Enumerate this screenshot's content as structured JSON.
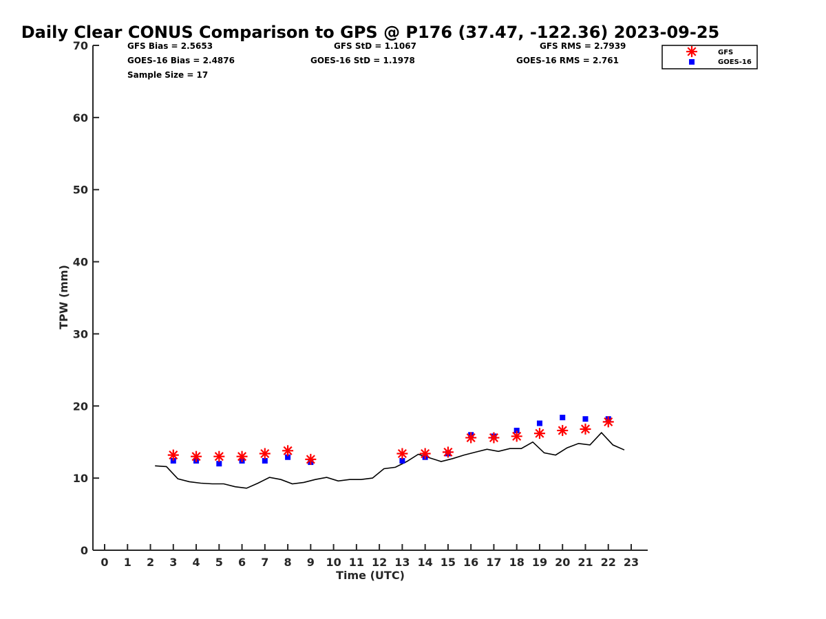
{
  "chart_data": {
    "type": "scatter",
    "title": "Daily Clear CONUS Comparison to GPS @ P176 (37.47, -122.36) 2023-09-25",
    "xlabel": "Time (UTC)",
    "ylabel": "TPW (mm)",
    "xlim": [
      -0.5,
      23.7
    ],
    "ylim": [
      0,
      70
    ],
    "xticks": [
      0,
      1,
      2,
      3,
      4,
      5,
      6,
      7,
      8,
      9,
      10,
      11,
      12,
      13,
      14,
      15,
      16,
      17,
      18,
      19,
      20,
      21,
      22,
      23
    ],
    "yticks": [
      0,
      10,
      20,
      30,
      40,
      50,
      60,
      70
    ],
    "grid": false,
    "legend_position": "top-right",
    "stats": {
      "gfs_bias": "GFS Bias = 2.5653",
      "goes_bias": "GOES-16 Bias = 2.4876",
      "sample_size": "Sample Size = 17",
      "gfs_std": "GFS StD = 1.1067",
      "goes_std": "GOES-16 StD = 1.1978",
      "gfs_rms": "GFS RMS = 2.7939",
      "goes_rms": "GOES-16 RMS = 2.761"
    },
    "series": [
      {
        "name": "GFS",
        "marker": "asterisk",
        "color": "#ff0000",
        "x": [
          3,
          4,
          5,
          6,
          7,
          8,
          9,
          13,
          14,
          15,
          16,
          17,
          18,
          19,
          20,
          21,
          22
        ],
        "y": [
          13.2,
          13.0,
          13.0,
          13.0,
          13.4,
          13.8,
          12.6,
          13.4,
          13.4,
          13.6,
          15.6,
          15.6,
          15.8,
          16.2,
          16.6,
          16.8,
          17.8
        ]
      },
      {
        "name": "GOES-16",
        "marker": "square",
        "color": "#0000ff",
        "x": [
          3,
          4,
          5,
          6,
          7,
          8,
          9,
          13,
          14,
          15,
          16,
          17,
          18,
          19,
          20,
          21,
          22
        ],
        "y": [
          12.4,
          12.4,
          12.0,
          12.4,
          12.4,
          12.9,
          12.2,
          12.4,
          12.9,
          13.4,
          16.0,
          15.8,
          16.6,
          17.6,
          18.4,
          18.2,
          18.2
        ]
      },
      {
        "name": "GPS",
        "marker": "line",
        "color": "#000000",
        "x": [
          2.2,
          2.7,
          3.2,
          3.7,
          4.2,
          4.7,
          5.2,
          5.7,
          6.2,
          6.7,
          7.2,
          7.7,
          8.2,
          8.7,
          9.2,
          9.7,
          10.2,
          10.7,
          11.2,
          11.7,
          12.2,
          12.7,
          13.2,
          13.7,
          14.2,
          14.7,
          15.2,
          15.7,
          16.2,
          16.7,
          17.2,
          17.7,
          18.2,
          18.7,
          19.2,
          19.7,
          20.2,
          20.7,
          21.2,
          21.7,
          22.2,
          22.7
        ],
        "y": [
          11.7,
          11.6,
          9.9,
          9.5,
          9.3,
          9.2,
          9.2,
          8.8,
          8.6,
          9.3,
          10.1,
          9.8,
          9.2,
          9.4,
          9.8,
          10.1,
          9.6,
          9.8,
          9.8,
          10.0,
          11.3,
          11.5,
          12.3,
          13.3,
          12.8,
          12.3,
          12.7,
          13.2,
          13.6,
          14.0,
          13.7,
          14.1,
          14.1,
          15.0,
          13.5,
          13.2,
          14.2,
          14.8,
          14.6,
          16.3,
          14.6,
          13.9
        ]
      }
    ]
  }
}
